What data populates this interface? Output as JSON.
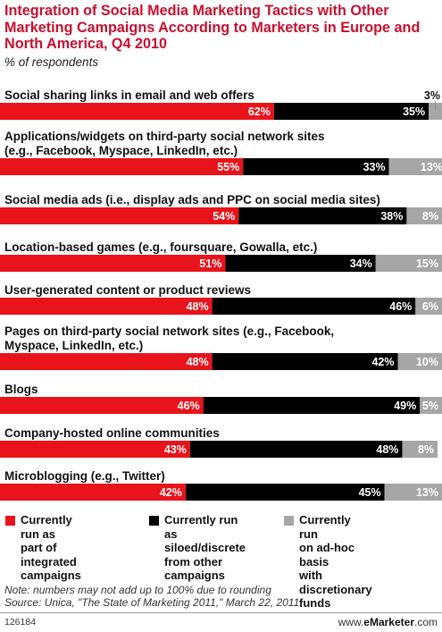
{
  "title": "Integration of Social Media Marketing Tactics with Other Marketing Campaigns According to Marketers in Europe and North America, Q4 2010",
  "subtitle": "% of respondents",
  "note": "Note: numbers may not add up to 100% due to rounding",
  "source": "Source: Unica, \"The State of Marketing 2011,\" March 22, 2011",
  "chart_id": "126184",
  "brand": {
    "prefix": "www.",
    "name": "eMarketer",
    "suffix": ".com"
  },
  "colors": {
    "red": "#e8131b",
    "black": "#000000",
    "gray": "#a6a6a6",
    "title": "#c8102e"
  },
  "chart_data": {
    "type": "bar",
    "orientation": "horizontal",
    "stacked": true,
    "unit": "%",
    "xlim": [
      0,
      100
    ],
    "categories": [
      "Social sharing links in email and web offers",
      "Applications/widgets on third-party social network sites\n(e.g., Facebook, Myspace, LinkedIn, etc.)",
      "Social media ads (i.e., display ads and PPC on social media sites)",
      "Location-based games (e.g., foursquare, Gowalla, etc.)",
      "User-generated content or product reviews",
      "Pages on third-party social network sites (e.g., Facebook,\nMyspace, LinkedIn, etc.)",
      "Blogs",
      "Company-hosted online communities",
      "Microblogging (e.g., Twitter)"
    ],
    "series": [
      {
        "name": "Currently run as part of integrated campaigns",
        "color": "#e8131b",
        "values": [
          62,
          55,
          54,
          51,
          48,
          48,
          46,
          43,
          42
        ]
      },
      {
        "name": "Currently run as siloed/discrete from other campaigns",
        "color": "#000000",
        "values": [
          35,
          33,
          38,
          34,
          46,
          42,
          49,
          48,
          45
        ]
      },
      {
        "name": "Currently run on ad-hoc basis with discretionary funds",
        "color": "#a6a6a6",
        "values": [
          3,
          13,
          8,
          15,
          6,
          10,
          5,
          8,
          13
        ]
      }
    ],
    "legend": {
      "position": "bottom",
      "labels": [
        "Currently run as\npart of integrated\ncampaigns",
        "Currently run as\nsiloed/discrete\nfrom other\ncampaigns",
        "Currently run\non ad-hoc basis\nwith discretionary\nfunds"
      ]
    }
  }
}
